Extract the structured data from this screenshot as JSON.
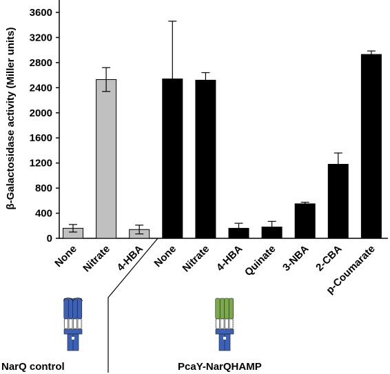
{
  "chart_data": {
    "type": "bar",
    "ylabel": "β-Galactosidase activity (Miller units)",
    "ylim": [
      0,
      3600
    ],
    "yticks": [
      0,
      400,
      800,
      1200,
      1600,
      2000,
      2400,
      2800,
      3200,
      3600
    ],
    "categories": [
      "None",
      "Nitrate",
      "4-HBA",
      "None",
      "Nitrate",
      "4-HBA",
      "Quinate",
      "3-NBA",
      "2-CBA",
      "p-Coumarate"
    ],
    "values": [
      160,
      2530,
      140,
      2540,
      2520,
      160,
      180,
      550,
      1180,
      2930
    ],
    "errors": [
      60,
      190,
      70,
      920,
      120,
      80,
      90,
      25,
      180,
      55
    ],
    "groups": [
      {
        "name": "NarQ control",
        "start": 0,
        "end": 2,
        "color": "#c0c0c0"
      },
      {
        "name": "PcaY-NarQHAMP",
        "start": 3,
        "end": 9,
        "color": "#000000"
      }
    ],
    "icons": [
      {
        "name": "narq-receptor-icon",
        "group": 0,
        "color": "#3b62b8"
      },
      {
        "name": "pcay-narqhamp-receptor-icon",
        "group": 1,
        "color": "#7aaa4c",
        "base_color": "#3b62b8"
      }
    ]
  }
}
